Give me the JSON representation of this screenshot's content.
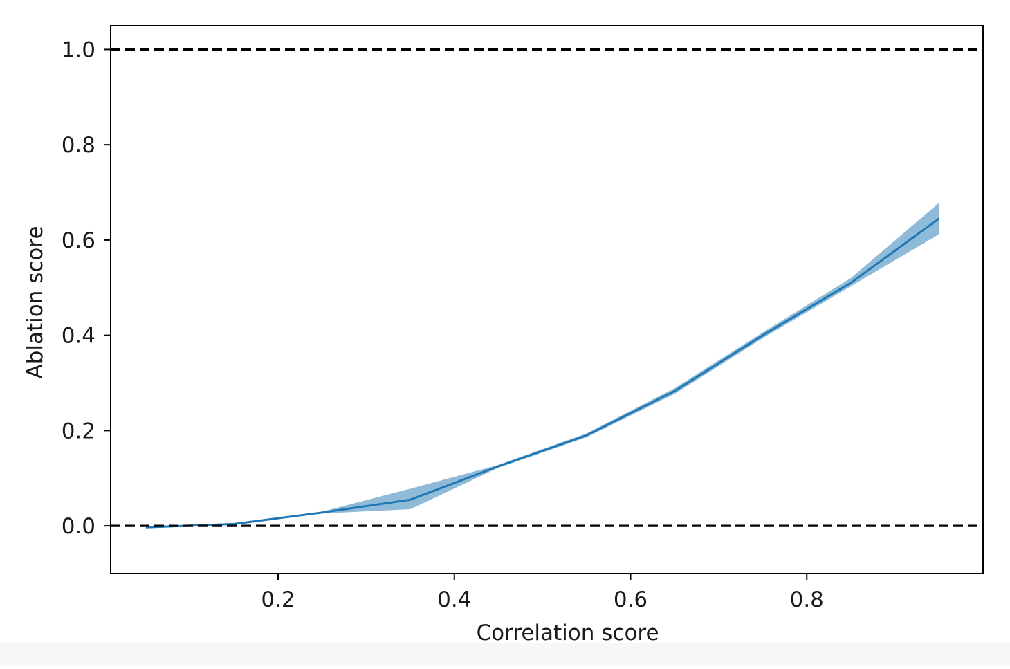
{
  "chart_data": {
    "type": "line",
    "title": "",
    "xlabel": "Correlation score",
    "ylabel": "Ablation score",
    "xlim": [
      0.01,
      1.0
    ],
    "ylim": [
      -0.1,
      1.05
    ],
    "x_ticks": [
      0.2,
      0.4,
      0.6,
      0.8
    ],
    "x_tick_labels": [
      "0.2",
      "0.4",
      "0.6",
      "0.8"
    ],
    "y_ticks": [
      0.0,
      0.2,
      0.4,
      0.6,
      0.8,
      1.0
    ],
    "y_tick_labels": [
      "0.0",
      "0.2",
      "0.4",
      "0.6",
      "0.8",
      "1.0"
    ],
    "grid": false,
    "reference_lines": [
      {
        "y": 1.0,
        "style": "dashed",
        "color": "#000000"
      },
      {
        "y": 0.0,
        "style": "dashed",
        "color": "#000000"
      }
    ],
    "series": [
      {
        "color": "#1f77b4",
        "band_color": "#1f77b4",
        "x": [
          0.05,
          0.15,
          0.25,
          0.35,
          0.45,
          0.55,
          0.65,
          0.75,
          0.85,
          0.95
        ],
        "y": [
          -0.003,
          0.004,
          0.028,
          0.055,
          0.125,
          0.19,
          0.283,
          0.4,
          0.51,
          0.645
        ],
        "lower": [
          -0.005,
          0.002,
          0.026,
          0.035,
          0.122,
          0.186,
          0.277,
          0.394,
          0.503,
          0.612
        ],
        "upper": [
          -0.001,
          0.006,
          0.03,
          0.078,
          0.128,
          0.194,
          0.289,
          0.406,
          0.52,
          0.678
        ]
      }
    ]
  }
}
